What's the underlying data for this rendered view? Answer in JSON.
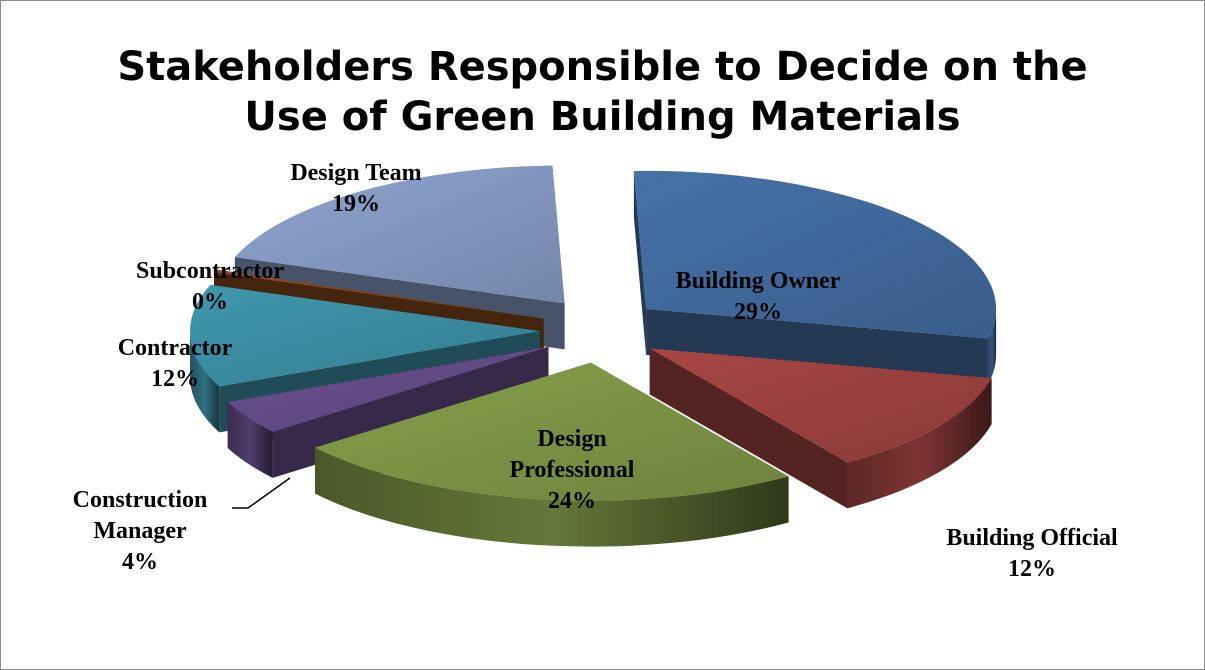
{
  "chart_data": {
    "type": "pie",
    "title": "Stakeholders Responsible to Decide on the Use of Green Building Materials",
    "title_lines": [
      "Stakeholders Responsible to Decide on the",
      "Use of Green Building Materials"
    ],
    "exploded": true,
    "three_d": true,
    "categories": [
      "Building Owner",
      "Building Official",
      "Design Professional",
      "Construction Manager",
      "Contractor",
      "Subcontractor",
      "Design Team"
    ],
    "values": [
      29,
      12,
      24,
      4,
      12,
      0,
      19
    ],
    "value_labels": [
      "29%",
      "12%",
      "24%",
      "4%",
      "12%",
      "0%",
      "19%"
    ],
    "label_lines": [
      [
        "Building Owner",
        "29%"
      ],
      [
        "Building Official",
        "12%"
      ],
      [
        "Design",
        "Professional",
        "24%"
      ],
      [
        "Construction",
        "Manager",
        "4%"
      ],
      [
        "Contractor",
        "12%"
      ],
      [
        "Subcontractor",
        "0%"
      ],
      [
        "Design Team",
        "19%"
      ]
    ],
    "colors": [
      "#4672a8",
      "#a84744",
      "#86a04b",
      "#6b5191",
      "#3f97ae",
      "#8b4a1e",
      "#8ea5cf"
    ],
    "legend": "none"
  }
}
